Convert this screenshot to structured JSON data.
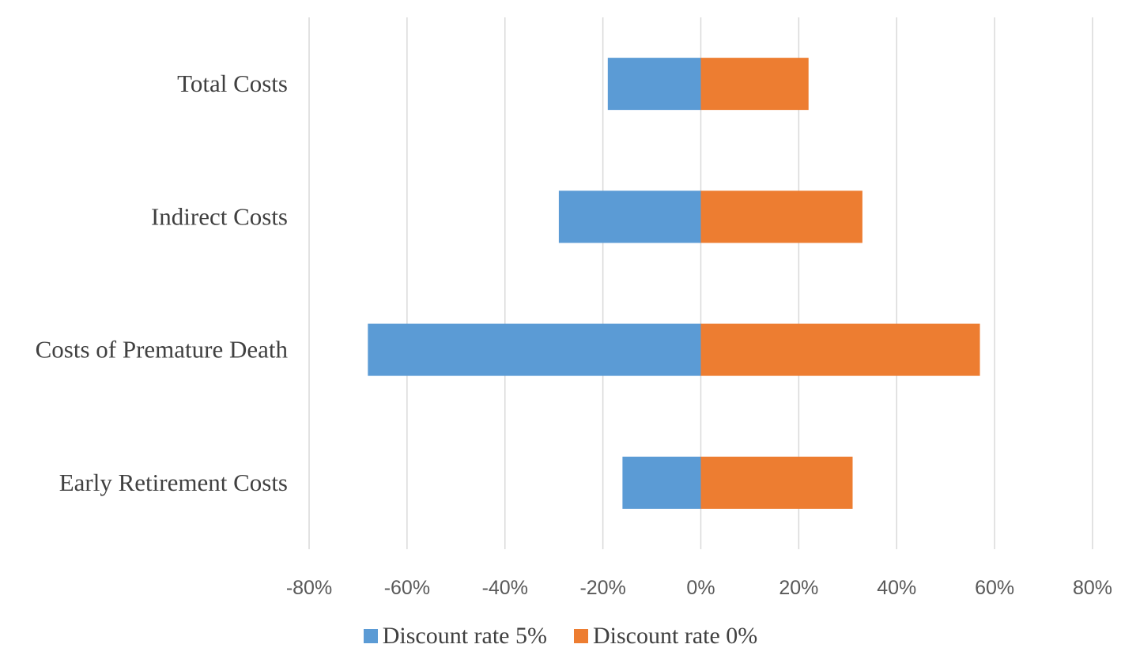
{
  "chart_data": {
    "type": "bar",
    "orientation": "horizontal",
    "title": "",
    "categories": [
      "Total Costs",
      "Indirect Costs",
      "Costs of Premature Death",
      "Early Retirement Costs"
    ],
    "series": [
      {
        "name": "Discount rate 5%",
        "color": "#5B9BD5",
        "values": [
          -19,
          -29,
          -68,
          -16
        ]
      },
      {
        "name": "Discount rate 0%",
        "color": "#ED7D31",
        "values": [
          22,
          33,
          57,
          31
        ]
      }
    ],
    "xlim": [
      -80,
      80
    ],
    "xticks": [
      -80,
      -60,
      -40,
      -20,
      0,
      20,
      40,
      60,
      80
    ],
    "xtick_labels": [
      "-80%",
      "-60%",
      "-40%",
      "-20%",
      "0%",
      "20%",
      "40%",
      "60%",
      "80%"
    ],
    "xlabel": "",
    "ylabel": "",
    "grid": "vertical",
    "legend_position": "bottom"
  }
}
